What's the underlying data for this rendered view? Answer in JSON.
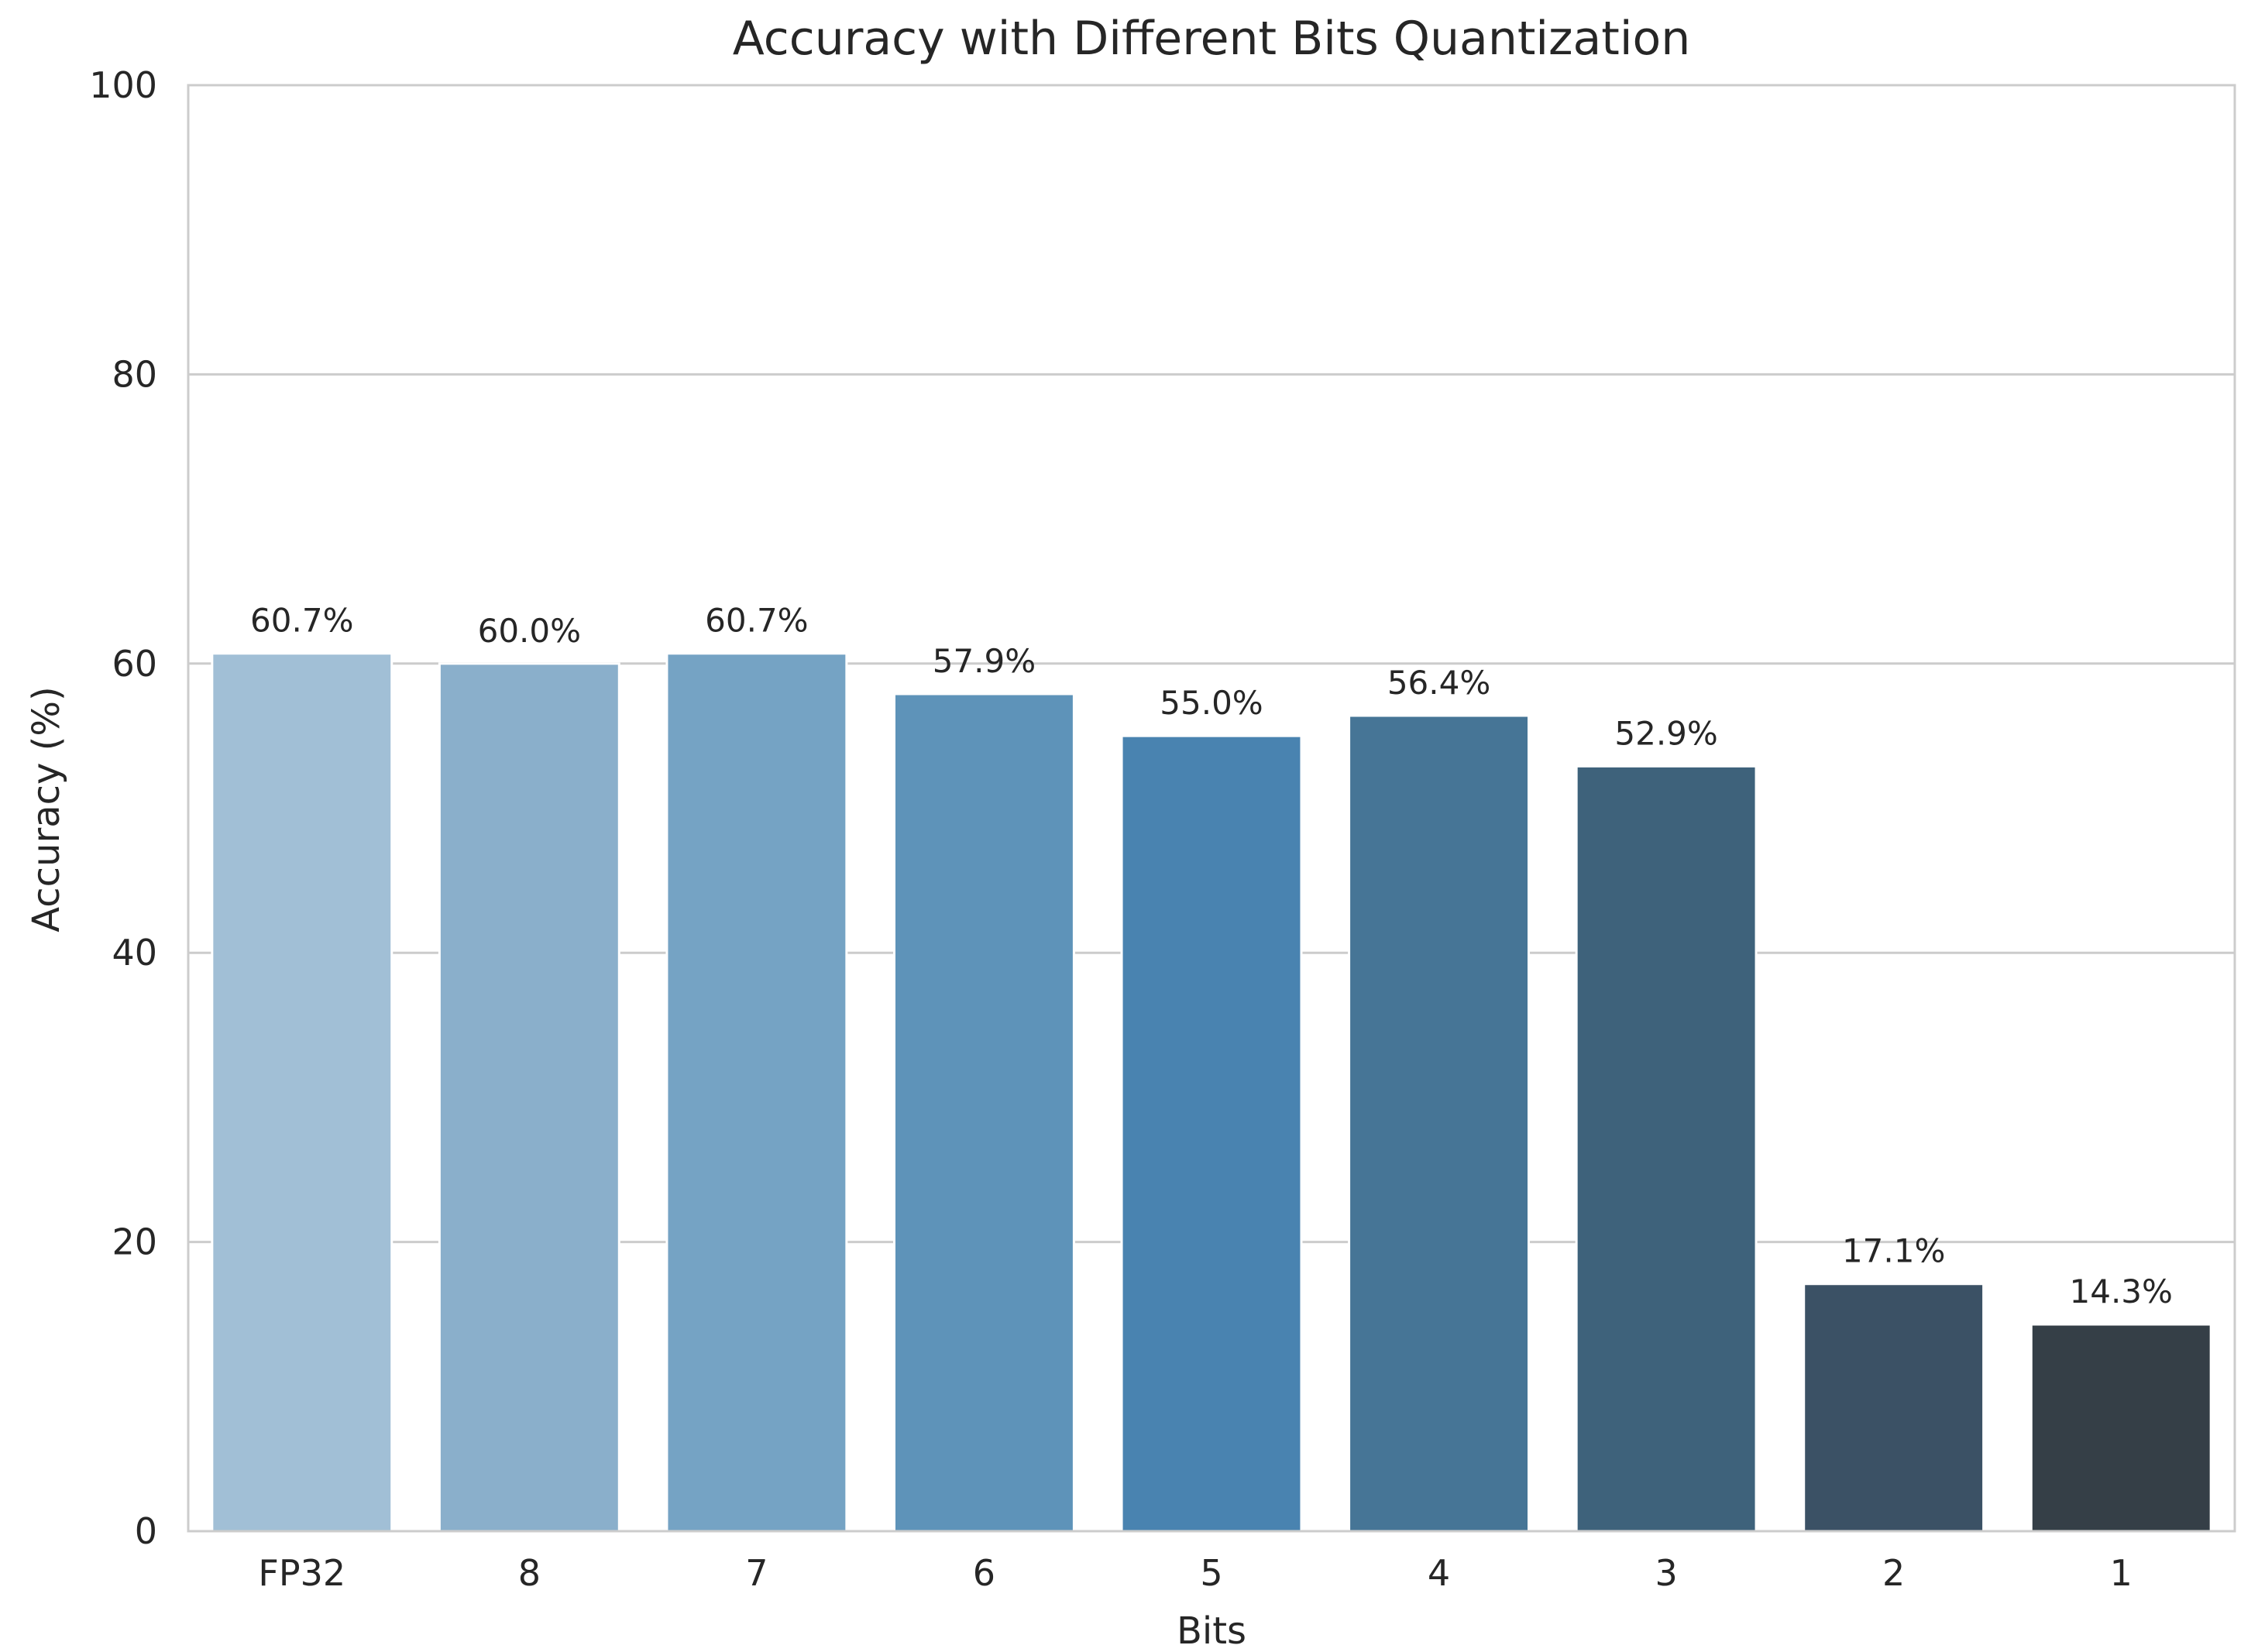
{
  "chart_data": {
    "type": "bar",
    "title": "Accuracy with Different Bits Quantization",
    "xlabel": "Bits",
    "ylabel": "Accuracy (%)",
    "ylim": [
      0,
      100
    ],
    "yticks": [
      0,
      20,
      40,
      60,
      80,
      100
    ],
    "grid": "horizontal",
    "categories": [
      "FP32",
      "8",
      "7",
      "6",
      "5",
      "4",
      "3",
      "2",
      "1"
    ],
    "values": [
      60.7,
      60.0,
      60.7,
      57.9,
      55.0,
      56.4,
      52.9,
      17.1,
      14.3
    ],
    "value_labels": [
      "60.7%",
      "60.0%",
      "60.7%",
      "57.9%",
      "55.0%",
      "56.4%",
      "52.9%",
      "17.1%",
      "14.3%"
    ],
    "colors": [
      "#a1bfd6",
      "#8aafcb",
      "#75a3c4",
      "#5e93b9",
      "#4983b0",
      "#467596",
      "#3e627b",
      "#3b5165",
      "#353f47"
    ],
    "grid_color": "#cccccc",
    "axis_color": "#cccccc"
  }
}
